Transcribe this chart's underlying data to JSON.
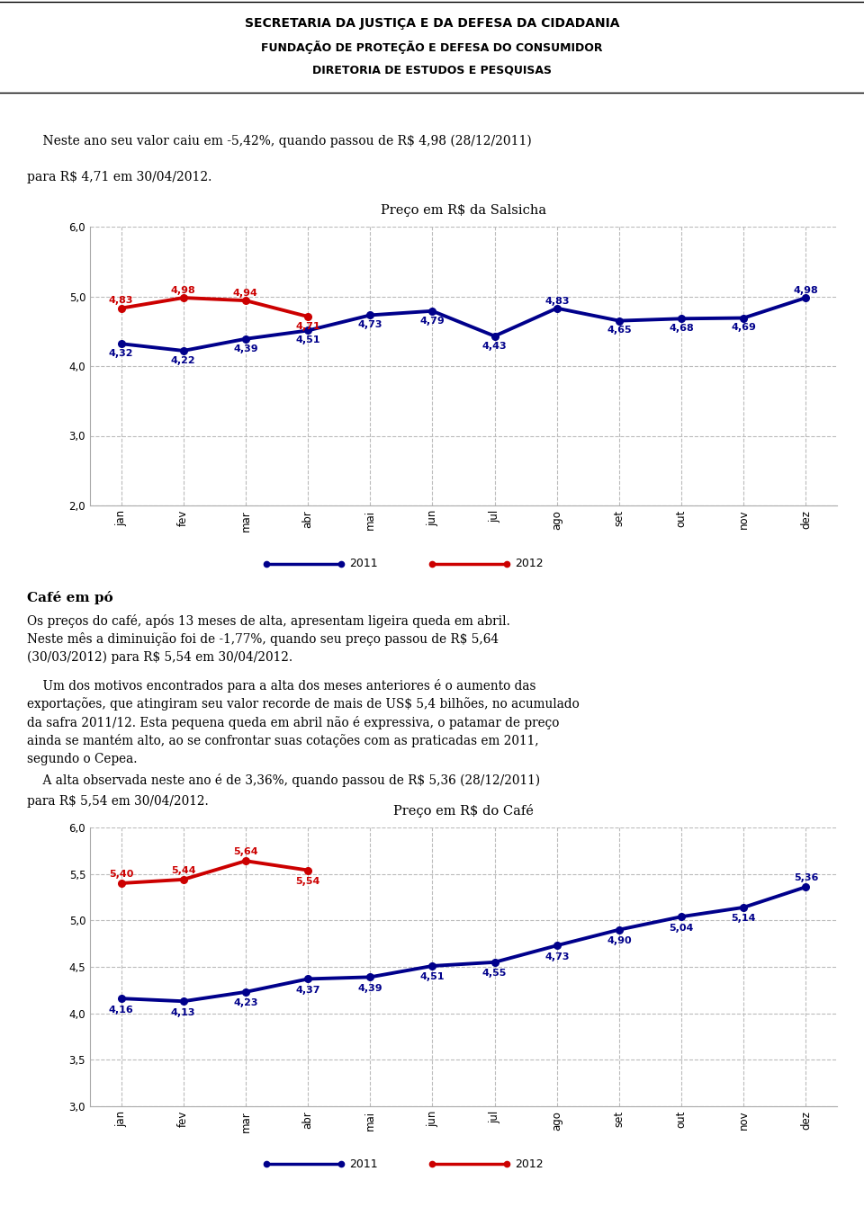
{
  "header_line1": "SECRETARIA DA JUSTIÇA E DA DEFESA DA CIDADANIA",
  "header_line2": "FUNDAÇÃO DE PROTEÇÃO E DEFESA DO CONSUMIDOR",
  "header_line3": "DIRETORIA DE ESTUDOS E PESQUISAS",
  "intro_line1": "    Neste ano seu valor caiu em -5,42%, quando passou de R$ 4,98 (28/12/2011)",
  "intro_line2": "para R$ 4,71 em 30/04/2012.",
  "chart1_title": "Preço em R$ da Salsicha",
  "chart1_months": [
    "jan",
    "fev",
    "mar",
    "abr",
    "mai",
    "jun",
    "jul",
    "ago",
    "set",
    "out",
    "nov",
    "dez"
  ],
  "chart1_2011": [
    4.32,
    4.22,
    4.39,
    4.51,
    4.73,
    4.79,
    4.43,
    4.83,
    4.65,
    4.68,
    4.69,
    4.98
  ],
  "chart1_2012": [
    4.83,
    4.98,
    4.94,
    4.71
  ],
  "chart1_ylim_min": 2.0,
  "chart1_ylim_max": 6.0,
  "chart1_yticks": [
    2.0,
    3.0,
    4.0,
    5.0,
    6.0
  ],
  "chart1_ytick_labels": [
    "2,0",
    "3,0",
    "4,0",
    "5,0",
    "6,0"
  ],
  "cafe_title": "Café em pó",
  "cafe_para1_line1": "Os preços do café, após 13 meses de alta, apresentam ligeira queda em abril.",
  "cafe_para1_line2": "Neste mês a diminuição foi de -1,77%, quando seu preço passou de R$ 5,64",
  "cafe_para1_line3": "(30/03/2012) para R$ 5,54 em 30/04/2012.",
  "cafe_para2_line1": "    Um dos motivos encontrados para a alta dos meses anteriores é o aumento das",
  "cafe_para2_line2": "exportações, que atingiram seu valor recorde de mais de US$ 5,4 bilhões, no acumulado",
  "cafe_para2_line3": "da safra 2011/12. Esta pequena queda em abril não é expressiva, o patamar de preço",
  "cafe_para2_line4": "ainda se mantém alto, ao se confrontar suas cotações com as praticadas em 2011,",
  "cafe_para2_line5": "segundo o Cepea.",
  "cafe_para3_line1": "    A alta observada neste ano é de 3,36%, quando passou de R$ 5,36 (28/12/2011)",
  "cafe_para3_line2": "para R$ 5,54 em 30/04/2012.",
  "chart2_title": "Preço em R$ do Café",
  "chart2_months": [
    "jan",
    "fev",
    "mar",
    "abr",
    "mai",
    "jun",
    "jul",
    "ago",
    "set",
    "out",
    "nov",
    "dez"
  ],
  "chart2_2011": [
    4.16,
    4.13,
    4.23,
    4.37,
    4.39,
    4.51,
    4.55,
    4.73,
    4.9,
    5.04,
    5.14,
    5.36
  ],
  "chart2_2012": [
    5.4,
    5.44,
    5.64,
    5.54
  ],
  "chart2_ylim_min": 3.0,
  "chart2_ylim_max": 6.0,
  "chart2_yticks": [
    3.0,
    3.5,
    4.0,
    4.5,
    5.0,
    5.5,
    6.0
  ],
  "chart2_ytick_labels": [
    "3,0",
    "3,5",
    "4,0",
    "4,5",
    "5,0",
    "5,5",
    "6,0"
  ],
  "line2011_color": "#00008B",
  "line2012_color": "#CC0000",
  "line_width": 2.8,
  "marker_size": 5.5,
  "label_fontsize": 8.0,
  "axis_fontsize": 8.5,
  "grid_color": "#BBBBBB",
  "bg": "#FFFFFF"
}
